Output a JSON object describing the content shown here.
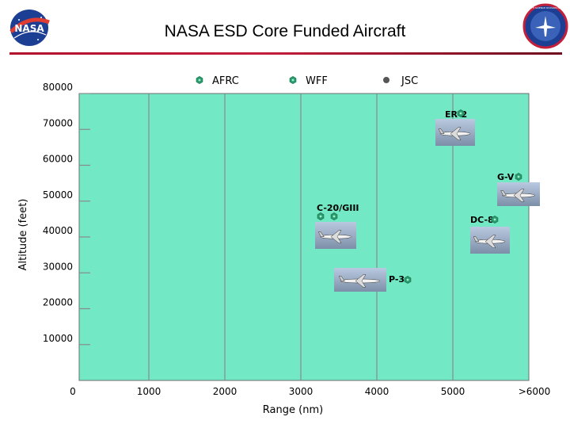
{
  "slide": {
    "title": "NASA ESD Core Funded Aircraft",
    "left_logo_text": "NASA",
    "right_logo_text": "EARTH SCIENCE DIVISION NASA"
  },
  "colors": {
    "plot_background": "#73e8c4",
    "grid": "#8a8a8a",
    "marker_green": "#2a9d6e",
    "marker_gray": "#555555",
    "title_rule": "#c41e3a"
  },
  "chart_data": {
    "type": "scatter",
    "title": "NASA ESD Core Funded Aircraft",
    "xlabel": "Range (nm)",
    "ylabel": "Altitude (feet)",
    "xlim": [
      0,
      6000
    ],
    "ylim": [
      0,
      80000
    ],
    "grid": true,
    "x_ticks": [
      "0",
      "1000",
      "2000",
      "3000",
      "4000",
      "5000",
      ">6000"
    ],
    "y_ticks": [
      "10000",
      "20000",
      "30000",
      "40000",
      "50000",
      "60000",
      "70000",
      "80000"
    ],
    "legend": {
      "placement": "top",
      "entries": [
        {
          "label": "AFRC",
          "color": "#2a9d6e",
          "shape": "hexagon"
        },
        {
          "label": "WFF",
          "color": "#2a9d6e",
          "shape": "hexagon"
        },
        {
          "label": "JSC",
          "color": "#555555",
          "shape": "circle"
        }
      ]
    },
    "points": [
      {
        "label": "ER-2",
        "x": 5050,
        "y": 73000,
        "centers": [
          "AFRC"
        ]
      },
      {
        "label": "G-V",
        "x": 6000,
        "y": 57500,
        "centers": [
          "AFRC"
        ]
      },
      {
        "label": "C-20/GIII",
        "x": 3300,
        "y": 47000,
        "centers": [
          "AFRC",
          "WFF"
        ]
      },
      {
        "label": "DC-8",
        "x": 5550,
        "y": 46000,
        "centers": [
          "AFRC"
        ]
      },
      {
        "label": "P-3",
        "x": 4350,
        "y": 30500,
        "centers": [
          "WFF"
        ]
      }
    ]
  }
}
